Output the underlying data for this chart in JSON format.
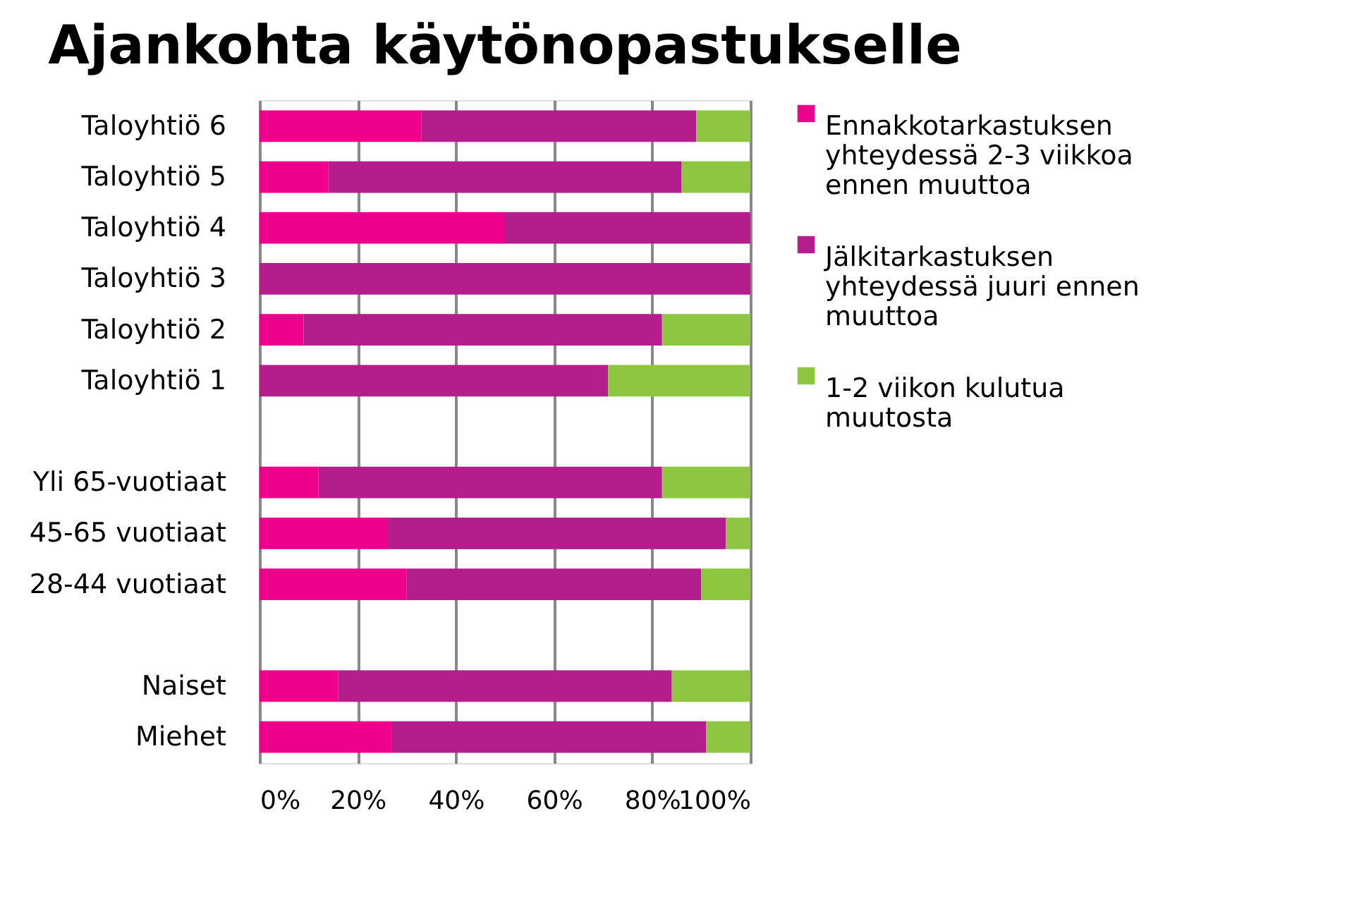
{
  "chart_data": {
    "type": "bar",
    "orientation": "horizontal",
    "stacked": true,
    "title": "Ajankohta käytönopastukselle",
    "categories": [
      "Taloyhtiö 6",
      "Taloyhtiö 5",
      "Taloyhtiö 4",
      "Taloyhtiö 3",
      "Taloyhtiö 2",
      "Taloyhtiö 1",
      null,
      "Yli 65-vuotiaat",
      "45-65 vuotiaat",
      "28-44 vuotiaat",
      null,
      "Naiset",
      "Miehet"
    ],
    "series": [
      {
        "name": " Ennakkotarkastuksen yhteydessä 2-3 viikkoa ennen muuttoa",
        "color": "#ec008c",
        "values": [
          33,
          14,
          50,
          0,
          9,
          0,
          null,
          12,
          26,
          30,
          null,
          16,
          27
        ]
      },
      {
        "name": "Jälkitarkastuksen yhteydessä juuri ennen muuttoa",
        "color": "#b31e8c",
        "values": [
          56,
          72,
          50,
          100,
          73,
          71,
          null,
          70,
          69,
          60,
          null,
          68,
          64
        ]
      },
      {
        "name": "1-2 viikon kulutua muutosta",
        "color": "#8dc63f",
        "values": [
          11,
          14,
          0,
          0,
          18,
          29,
          null,
          18,
          5,
          10,
          null,
          16,
          9
        ]
      }
    ],
    "xlim": [
      0,
      100
    ],
    "xticks": [
      {
        "value": 0,
        "label": "0%"
      },
      {
        "value": 20,
        "label": "20%"
      },
      {
        "value": 40,
        "label": "40%"
      },
      {
        "value": 60,
        "label": "60%"
      },
      {
        "value": 80,
        "label": "80%"
      },
      {
        "value": 100,
        "label": "100%"
      }
    ],
    "grid": "x",
    "legend": "right"
  }
}
